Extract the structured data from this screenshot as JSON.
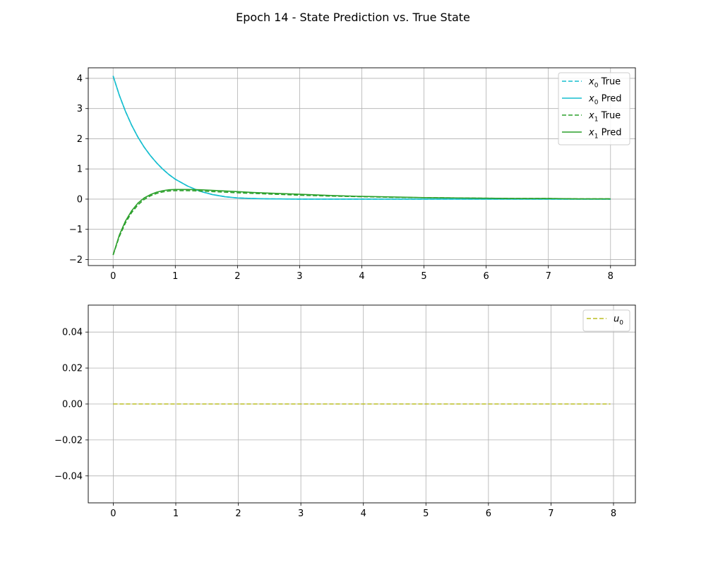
{
  "figure": {
    "title": "Epoch 14 - State Prediction vs. True State"
  },
  "chart_data": [
    {
      "type": "line",
      "xlim": [
        -0.4,
        8.4
      ],
      "ylim": [
        -2.2,
        4.35
      ],
      "x_ticks": [
        0,
        1,
        2,
        3,
        4,
        5,
        6,
        7,
        8
      ],
      "y_ticks": [
        -2,
        -1,
        0,
        1,
        2,
        3,
        4
      ],
      "x_tick_labels": [
        "0",
        "1",
        "2",
        "3",
        "4",
        "5",
        "6",
        "7",
        "8"
      ],
      "y_tick_labels": [
        "−2",
        "−1",
        "0",
        "1",
        "2",
        "3",
        "4"
      ],
      "grid": true,
      "legend_position": "top-right",
      "x": [
        0,
        0.1,
        0.2,
        0.3,
        0.4,
        0.5,
        0.6,
        0.7,
        0.8,
        0.9,
        1.0,
        1.2,
        1.4,
        1.6,
        1.8,
        2.0,
        2.25,
        2.5,
        3.0,
        3.5,
        4.0,
        4.5,
        5.0,
        5.5,
        6.0,
        6.5,
        7.0,
        7.5,
        8.0
      ],
      "series": [
        {
          "name_base": "x",
          "name_sub": "0",
          "name_suffix": " True",
          "color": "#17becf",
          "dash": true,
          "values": [
            4.08,
            3.44,
            2.9,
            2.44,
            2.05,
            1.72,
            1.44,
            1.2,
            0.99,
            0.81,
            0.66,
            0.43,
            0.26,
            0.15,
            0.08,
            0.04,
            0.02,
            0.01,
            0.0,
            0.0,
            0.0,
            0.0,
            0.0,
            0.0,
            0.0,
            0.0,
            0.0,
            0.0,
            0.0
          ]
        },
        {
          "name_base": "x",
          "name_sub": "0",
          "name_suffix": " Pred",
          "color": "#17becf",
          "dash": false,
          "values": [
            4.08,
            3.44,
            2.9,
            2.44,
            2.05,
            1.72,
            1.44,
            1.2,
            0.99,
            0.81,
            0.66,
            0.43,
            0.26,
            0.15,
            0.08,
            0.04,
            0.02,
            0.01,
            0.0,
            0.0,
            0.0,
            0.0,
            0.0,
            0.0,
            0.0,
            0.0,
            0.0,
            0.0,
            0.0
          ]
        },
        {
          "name_base": "x",
          "name_sub": "1",
          "name_suffix": " True",
          "color": "#2ca02c",
          "dash": true,
          "values": [
            -1.85,
            -1.24,
            -0.78,
            -0.44,
            -0.19,
            -0.01,
            0.11,
            0.19,
            0.24,
            0.27,
            0.28,
            0.28,
            0.27,
            0.25,
            0.23,
            0.21,
            0.19,
            0.17,
            0.13,
            0.1,
            0.08,
            0.06,
            0.05,
            0.04,
            0.03,
            0.02,
            0.02,
            0.01,
            0.01
          ]
        },
        {
          "name_base": "x",
          "name_sub": "1",
          "name_suffix": " Pred",
          "color": "#2ca02c",
          "dash": false,
          "values": [
            -1.85,
            -1.19,
            -0.72,
            -0.38,
            -0.13,
            0.04,
            0.15,
            0.23,
            0.28,
            0.31,
            0.32,
            0.32,
            0.31,
            0.29,
            0.27,
            0.25,
            0.22,
            0.2,
            0.16,
            0.12,
            0.09,
            0.07,
            0.05,
            0.04,
            0.03,
            0.02,
            0.02,
            0.01,
            0.01
          ]
        }
      ]
    },
    {
      "type": "line",
      "xlim": [
        -0.4,
        8.35
      ],
      "ylim": [
        -0.055,
        0.055
      ],
      "x_ticks": [
        0,
        1,
        2,
        3,
        4,
        5,
        6,
        7,
        8
      ],
      "y_ticks": [
        -0.04,
        -0.02,
        0.0,
        0.02,
        0.04
      ],
      "x_tick_labels": [
        "0",
        "1",
        "2",
        "3",
        "4",
        "5",
        "6",
        "7",
        "8"
      ],
      "y_tick_labels": [
        "−0.04",
        "−0.02",
        "0.00",
        "0.02",
        "0.04"
      ],
      "grid": true,
      "legend_position": "top-right",
      "x": [
        0,
        7.95
      ],
      "series": [
        {
          "name_base": "u",
          "name_sub": "0",
          "name_suffix": "",
          "color": "#bcbd22",
          "dash": true,
          "values": [
            0.0,
            0.0
          ]
        }
      ]
    }
  ]
}
